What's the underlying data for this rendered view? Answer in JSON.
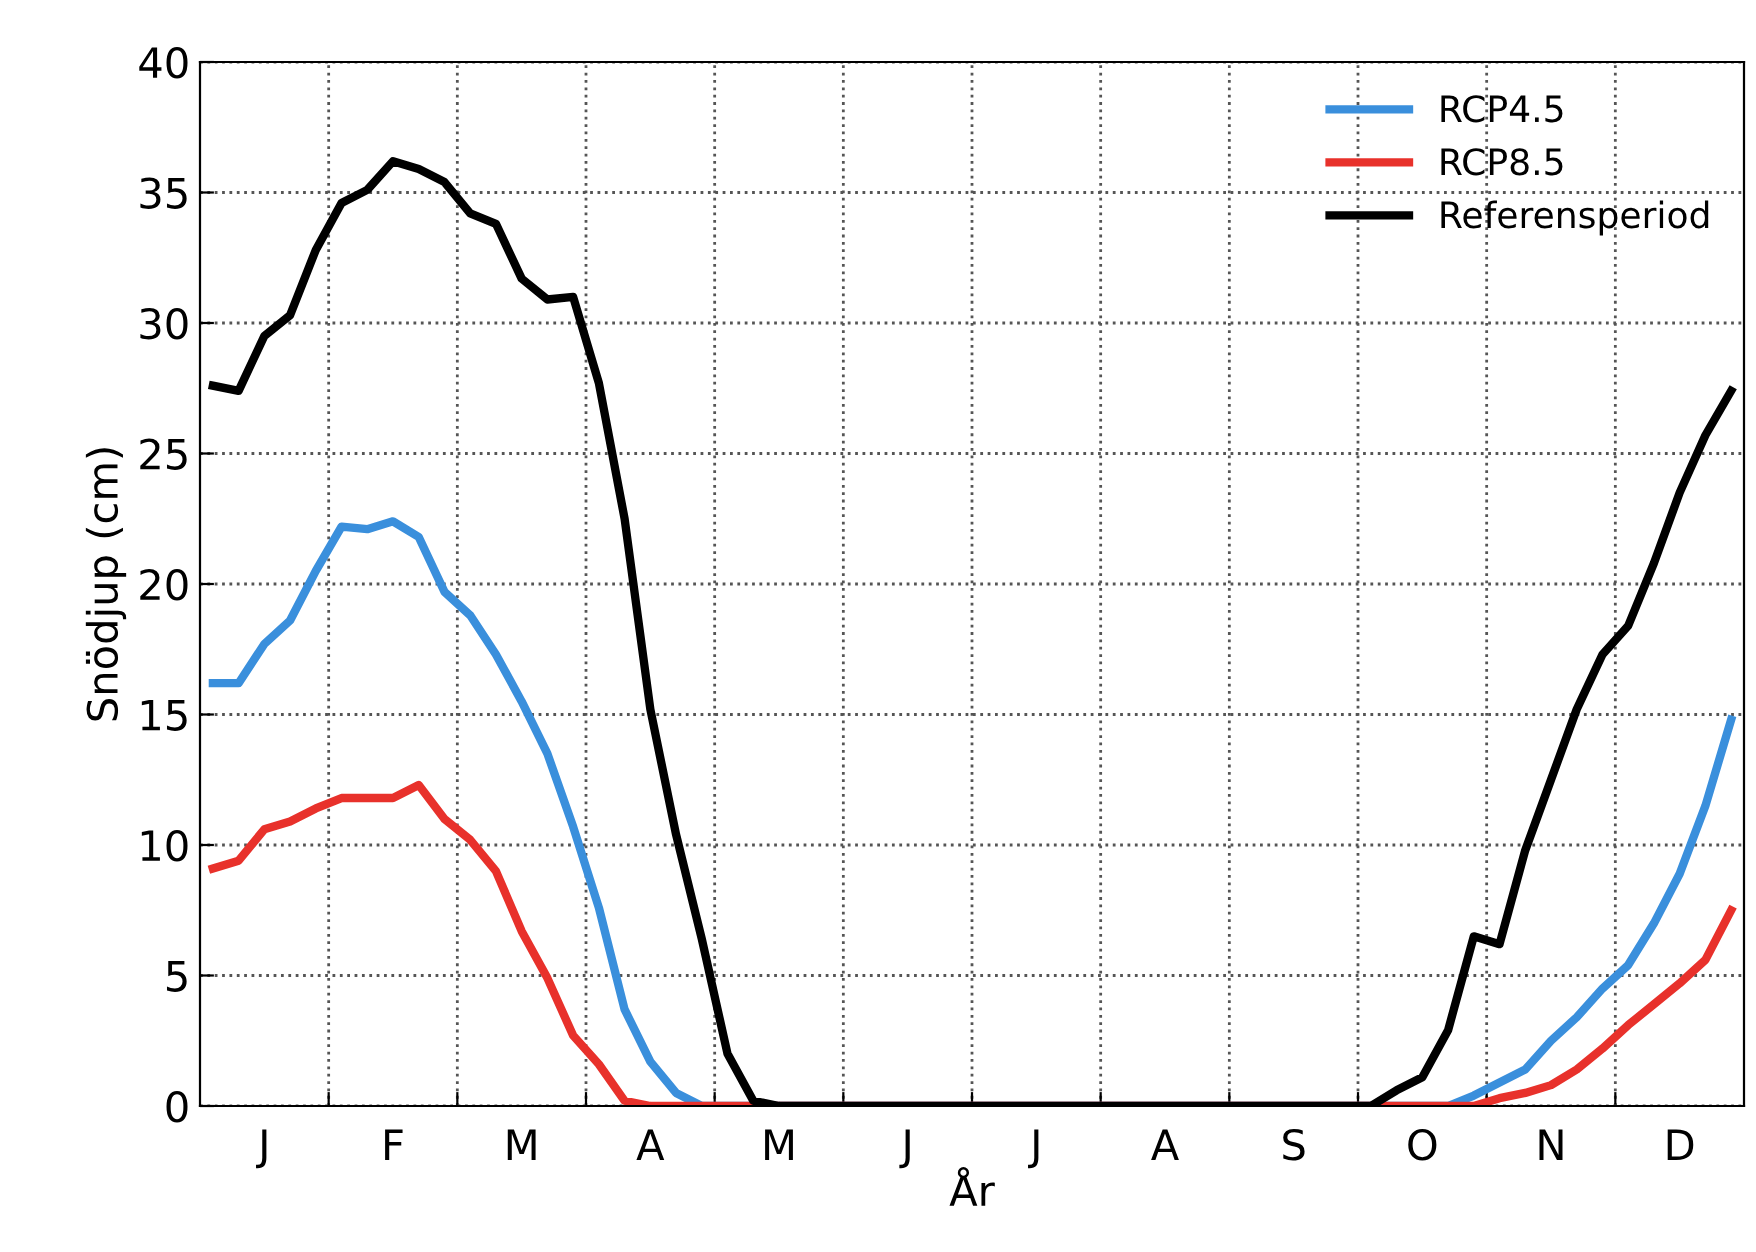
{
  "chart_data": {
    "type": "line",
    "xlabel": "År",
    "ylabel": "Snödjup (cm)",
    "categories": [
      null,
      null,
      "J",
      null,
      null,
      null,
      null,
      "F",
      null,
      null,
      null,
      null,
      "M",
      null,
      null,
      null,
      null,
      "A",
      null,
      null,
      null,
      null,
      "M",
      null,
      null,
      null,
      null,
      "J",
      null,
      null,
      null,
      null,
      "J",
      null,
      null,
      null,
      null,
      "A",
      null,
      null,
      null,
      null,
      "S",
      null,
      null,
      null,
      null,
      "O",
      null,
      null,
      null,
      null,
      "N",
      null,
      null,
      null,
      null,
      "D",
      null,
      null
    ],
    "ylim": [
      0,
      40
    ],
    "yticks": [
      0,
      5,
      10,
      15,
      20,
      25,
      30,
      35,
      40
    ],
    "grid": true,
    "legend": "top right",
    "line_style": "solid",
    "marker": "none",
    "series": [
      {
        "name": "RCP4.5",
        "color": "#3a8fdc",
        "values": [
          16.2,
          16.2,
          17.7,
          18.6,
          20.5,
          22.2,
          22.1,
          22.4,
          21.8,
          19.7,
          18.8,
          17.3,
          15.5,
          13.5,
          10.7,
          7.6,
          3.7,
          1.7,
          0.5,
          0,
          0,
          0,
          0,
          0,
          0,
          0,
          0,
          0,
          0,
          0,
          0,
          0,
          0,
          0,
          0,
          0,
          0,
          0,
          0,
          0,
          0,
          0,
          0,
          0,
          0,
          0,
          0,
          0,
          0,
          0.4,
          0.9,
          1.4,
          2.5,
          3.4,
          4.5,
          5.4,
          7.0,
          8.9,
          11.5,
          14.8
        ]
      },
      {
        "name": "RCP8.5",
        "color": "#e8312b",
        "values": [
          9.1,
          9.4,
          10.6,
          10.9,
          11.4,
          11.8,
          11.8,
          11.8,
          12.3,
          11.0,
          10.2,
          9.0,
          6.7,
          4.9,
          2.7,
          1.6,
          0.2,
          0,
          0,
          0,
          0,
          0,
          0,
          0,
          0,
          0,
          0,
          0,
          0,
          0,
          0,
          0,
          0,
          0,
          0,
          0,
          0,
          0,
          0,
          0,
          0,
          0,
          0,
          0,
          0,
          0,
          0,
          0,
          0,
          0,
          0.3,
          0.5,
          0.8,
          1.4,
          2.2,
          3.1,
          3.9,
          4.7,
          5.6,
          7.5
        ]
      },
      {
        "name": "Referensperiod",
        "color": "#000000",
        "values": [
          27.6,
          27.4,
          29.5,
          30.3,
          32.8,
          34.6,
          35.1,
          36.2,
          35.9,
          35.4,
          34.2,
          33.8,
          31.7,
          30.9,
          31.0,
          27.7,
          22.5,
          15.2,
          10.4,
          6.4,
          2.0,
          0.2,
          0,
          0,
          0,
          0,
          0,
          0,
          0,
          0,
          0,
          0,
          0,
          0,
          0,
          0,
          0,
          0,
          0,
          0,
          0,
          0,
          0,
          0,
          0,
          0,
          0.6,
          1.1,
          2.9,
          6.5,
          6.2,
          9.8,
          12.5,
          15.2,
          17.3,
          18.4,
          20.8,
          23.5,
          25.7,
          27.4
        ]
      }
    ]
  }
}
